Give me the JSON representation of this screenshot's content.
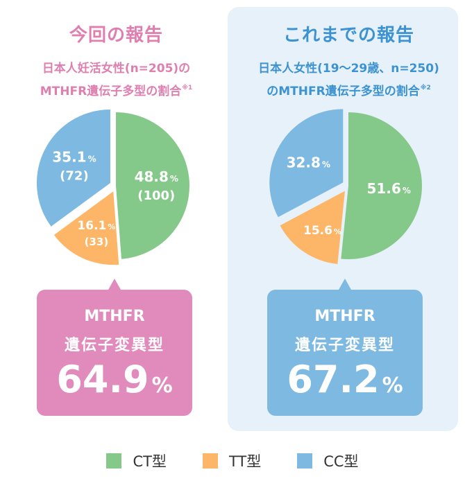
{
  "colors": {
    "ct": "#85c98a",
    "tt": "#fdb667",
    "cc": "#7db9e0",
    "left_accent": "#de7fb0",
    "left_callout": "#e08bbc",
    "right_accent": "#3d93d1",
    "right_callout": "#7db9e0",
    "right_panel": "#e6f1f9"
  },
  "legend": [
    {
      "label": "CT型",
      "key": "ct"
    },
    {
      "label": "TT型",
      "key": "tt"
    },
    {
      "label": "CC型",
      "key": "cc"
    }
  ],
  "panels": [
    {
      "title": "今回の報告",
      "subtitle_line1": "日本人妊活女性(n=205)の",
      "subtitle_line2": "MTHFR遺伝子多型の割合",
      "note_mark": "※1",
      "callout_line1": "MTHFR",
      "callout_line2": "遺伝子変異型",
      "callout_value": "64.9",
      "callout_unit": "%"
    },
    {
      "title": "これまでの報告",
      "subtitle_line1": "日本人女性(19〜29歳、n=250)",
      "subtitle_line2": "のMTHFR遺伝子多型の割合",
      "note_mark": "※2",
      "callout_line1": "MTHFR",
      "callout_line2": "遺伝子変異型",
      "callout_value": "67.2",
      "callout_unit": "%"
    }
  ],
  "chart_data": [
    {
      "type": "pie",
      "title": "今回の報告",
      "slices": [
        {
          "key": "ct",
          "label": "CT型",
          "value": 48.8,
          "display": "48.8",
          "count": "(100)"
        },
        {
          "key": "tt",
          "label": "TT型",
          "value": 16.1,
          "display": "16.1",
          "count": "(33)"
        },
        {
          "key": "cc",
          "label": "CC型",
          "value": 35.1,
          "display": "35.1",
          "count": "(72)"
        }
      ],
      "exploded": [
        "tt",
        "cc"
      ]
    },
    {
      "type": "pie",
      "title": "これまでの報告",
      "slices": [
        {
          "key": "ct",
          "label": "CT型",
          "value": 51.6,
          "display": "51.6",
          "count": ""
        },
        {
          "key": "tt",
          "label": "TT型",
          "value": 15.6,
          "display": "15.6",
          "count": ""
        },
        {
          "key": "cc",
          "label": "CC型",
          "value": 32.8,
          "display": "32.8",
          "count": ""
        }
      ],
      "exploded": [
        "tt",
        "cc"
      ]
    }
  ]
}
